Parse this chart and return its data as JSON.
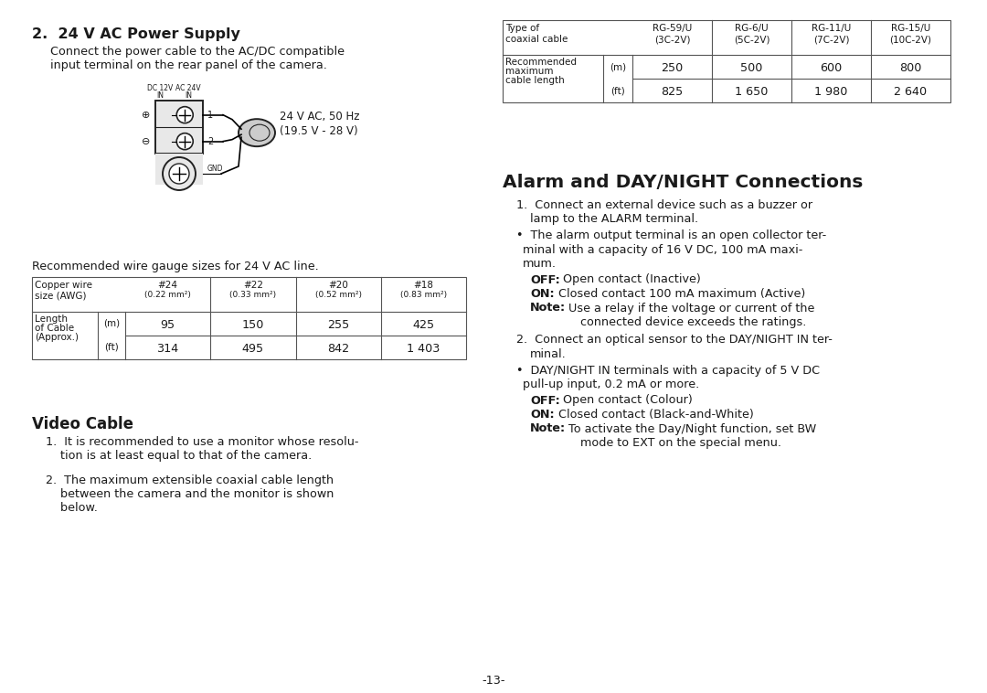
{
  "bg_color": "#ffffff",
  "text_color": "#1a1a1a",
  "page_number": "-13-",
  "left_col": {
    "section2_heading": "2.  24 V AC Power Supply",
    "section2_body_l1": "Connect the power cable to the AC/DC compatible",
    "section2_body_l2": "input terminal on the rear panel of the camera.",
    "gauge_intro": "Recommended wire gauge sizes for 24 V AC line.",
    "gauge_table": {
      "row1_data_m": [
        "95",
        "150",
        "255",
        "425"
      ],
      "row1_data_ft": [
        "314",
        "495",
        "842",
        "1 403"
      ]
    },
    "video_cable_heading": "Video Cable",
    "video_body1_l1": "1.  It is recommended to use a monitor whose resolu-",
    "video_body1_l2": "    tion is at least equal to that of the camera.",
    "video_body2_l1": "2.  The maximum extensible coaxial cable length",
    "video_body2_l2": "    between the camera and the monitor is shown",
    "video_body2_l3": "    below."
  },
  "right_col": {
    "coax_table": {
      "row1_data_m": [
        "250",
        "500",
        "600",
        "800"
      ],
      "row1_data_ft": [
        "825",
        "1 650",
        "1 980",
        "2 640"
      ]
    },
    "alarm_heading": "Alarm and DAY/NIGHT Connections",
    "alarm_l1": "1.  Connect an external device such as a buzzer or",
    "alarm_l2": "    lamp to the ALARM terminal.",
    "alarm_bullet_l1": "•  The alarm output terminal is an open collector ter-",
    "alarm_bullet_l2": "   minal with a capacity of 16 V DC, 100 mA maxi-",
    "alarm_bullet_l3": "   mum.",
    "alarm_l3": "2.  Connect an optical sensor to the DAY/NIGHT IN ter-",
    "alarm_l4": "    minal.",
    "alarm_bullet2_l1": "•  DAY/NIGHT IN terminals with a capacity of 5 V DC",
    "alarm_bullet2_l2": "   pull-up input, 0.2 mA or more."
  }
}
